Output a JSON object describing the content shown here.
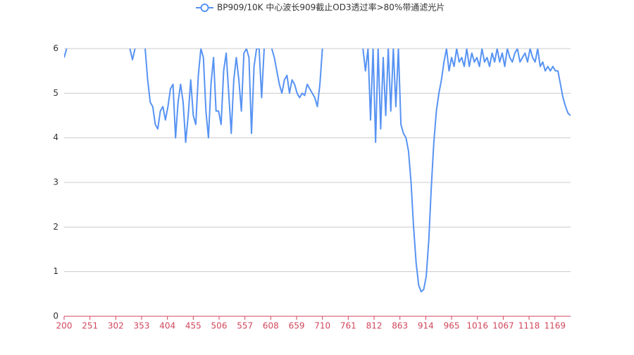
{
  "chart_data": {
    "type": "line",
    "x": [
      200,
      205,
      210,
      215,
      220,
      225,
      230,
      235,
      240,
      245,
      250,
      255,
      260,
      265,
      270,
      275,
      280,
      285,
      290,
      295,
      300,
      305,
      310,
      315,
      320,
      325,
      330,
      335,
      340,
      345,
      350,
      355,
      360,
      365,
      370,
      375,
      380,
      385,
      390,
      395,
      400,
      405,
      410,
      415,
      420,
      425,
      430,
      435,
      440,
      445,
      450,
      455,
      460,
      465,
      470,
      475,
      480,
      485,
      490,
      495,
      500,
      505,
      510,
      515,
      520,
      525,
      530,
      535,
      540,
      545,
      550,
      555,
      560,
      565,
      570,
      575,
      580,
      585,
      590,
      595,
      600,
      605,
      610,
      615,
      620,
      625,
      630,
      635,
      640,
      645,
      650,
      655,
      660,
      665,
      670,
      675,
      680,
      685,
      690,
      695,
      700,
      705,
      710,
      715,
      720,
      725,
      730,
      735,
      740,
      745,
      750,
      755,
      760,
      765,
      770,
      775,
      780,
      785,
      790,
      795,
      800,
      805,
      810,
      815,
      820,
      825,
      830,
      835,
      840,
      845,
      850,
      855,
      860,
      865,
      870,
      875,
      880,
      885,
      890,
      895,
      900,
      905,
      910,
      915,
      920,
      925,
      930,
      935,
      940,
      945,
      950,
      955,
      960,
      965,
      970,
      975,
      980,
      985,
      990,
      995,
      1000,
      1005,
      1010,
      1015,
      1020,
      1025,
      1030,
      1035,
      1040,
      1045,
      1050,
      1055,
      1060,
      1065,
      1070,
      1075,
      1080,
      1085,
      1090,
      1095,
      1100,
      1105,
      1110,
      1115,
      1120,
      1125,
      1130,
      1135,
      1140,
      1145,
      1150,
      1155,
      1160,
      1165,
      1170,
      1175,
      1180,
      1185,
      1190,
      1195,
      1200
    ],
    "series": [
      {
        "name": "BP909/10K 中心波长909截止OD3透过率>80%带通滤光片",
        "color": "#5793f3",
        "values": [
          5.8,
          6,
          null,
          null,
          null,
          null,
          null,
          null,
          null,
          null,
          null,
          null,
          null,
          null,
          null,
          null,
          null,
          null,
          null,
          null,
          null,
          null,
          null,
          null,
          null,
          null,
          6,
          5.75,
          6,
          null,
          null,
          null,
          6,
          5.3,
          4.8,
          4.7,
          4.3,
          4.2,
          4.6,
          4.7,
          4.4,
          4.7,
          5.1,
          5.2,
          4.0,
          4.8,
          5.2,
          4.8,
          3.9,
          4.5,
          5.3,
          4.5,
          4.3,
          5.4,
          6,
          5.8,
          4.6,
          4.0,
          5.2,
          5.8,
          4.6,
          4.6,
          4.3,
          5.5,
          5.9,
          5.0,
          4.1,
          5.3,
          5.8,
          5.3,
          4.6,
          5.9,
          6,
          5.8,
          4.1,
          5.6,
          6,
          6,
          4.9,
          6,
          null,
          null,
          6,
          5.8,
          5.5,
          5.2,
          5.0,
          5.3,
          5.4,
          5.0,
          5.3,
          5.2,
          5.0,
          4.9,
          5.0,
          4.95,
          5.2,
          5.1,
          5.0,
          4.9,
          4.7,
          5.2,
          6,
          null,
          null,
          null,
          null,
          null,
          null,
          null,
          null,
          null,
          null,
          null,
          null,
          null,
          null,
          null,
          6,
          5.5,
          6,
          4.4,
          6,
          3.9,
          6,
          4.2,
          5.8,
          4.5,
          6,
          4.6,
          6,
          4.7,
          6,
          4.3,
          4.1,
          4.0,
          3.7,
          3.0,
          2.0,
          1.2,
          0.7,
          0.55,
          0.6,
          0.9,
          1.7,
          2.9,
          3.9,
          4.6,
          5.0,
          5.3,
          5.7,
          6,
          5.5,
          5.8,
          5.6,
          6,
          5.7,
          5.8,
          5.6,
          6,
          5.6,
          5.9,
          5.7,
          5.8,
          5.6,
          6,
          5.7,
          5.8,
          5.6,
          5.9,
          5.7,
          6,
          5.7,
          5.9,
          5.6,
          6,
          5.8,
          5.7,
          5.9,
          6,
          5.7,
          5.8,
          5.9,
          5.7,
          6,
          5.8,
          5.7,
          6,
          5.6,
          5.7,
          5.5,
          5.6,
          5.5,
          5.6,
          5.5,
          5.5,
          5.2,
          4.9,
          4.7,
          4.55,
          4.5
        ]
      }
    ],
    "xlim": [
      200,
      1200
    ],
    "xticks": [
      200,
      251,
      302,
      353,
      404,
      455,
      506,
      557,
      608,
      659,
      710,
      761,
      812,
      863,
      914,
      965,
      1016,
      1067,
      1118,
      1169
    ],
    "ylim": [
      0,
      6
    ],
    "yticks": [
      0,
      1,
      2,
      3,
      4,
      5,
      6
    ],
    "grid": true,
    "axis_color": "#d0475c",
    "legend": "top"
  }
}
